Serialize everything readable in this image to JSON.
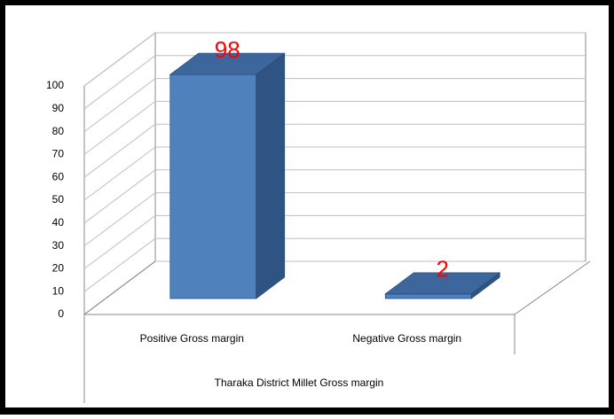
{
  "chart_data": {
    "type": "bar3d",
    "categories": [
      "Positive Gross margin",
      "Negative Gross margin"
    ],
    "values": [
      98,
      2
    ],
    "color": "#4f81bd",
    "x_label": "Tharaka District Millet Gross margin",
    "ylim": [
      0,
      100
    ],
    "yticks": [
      0,
      10,
      20,
      30,
      40,
      50,
      60,
      70,
      80,
      90,
      100
    ],
    "grid": true
  }
}
